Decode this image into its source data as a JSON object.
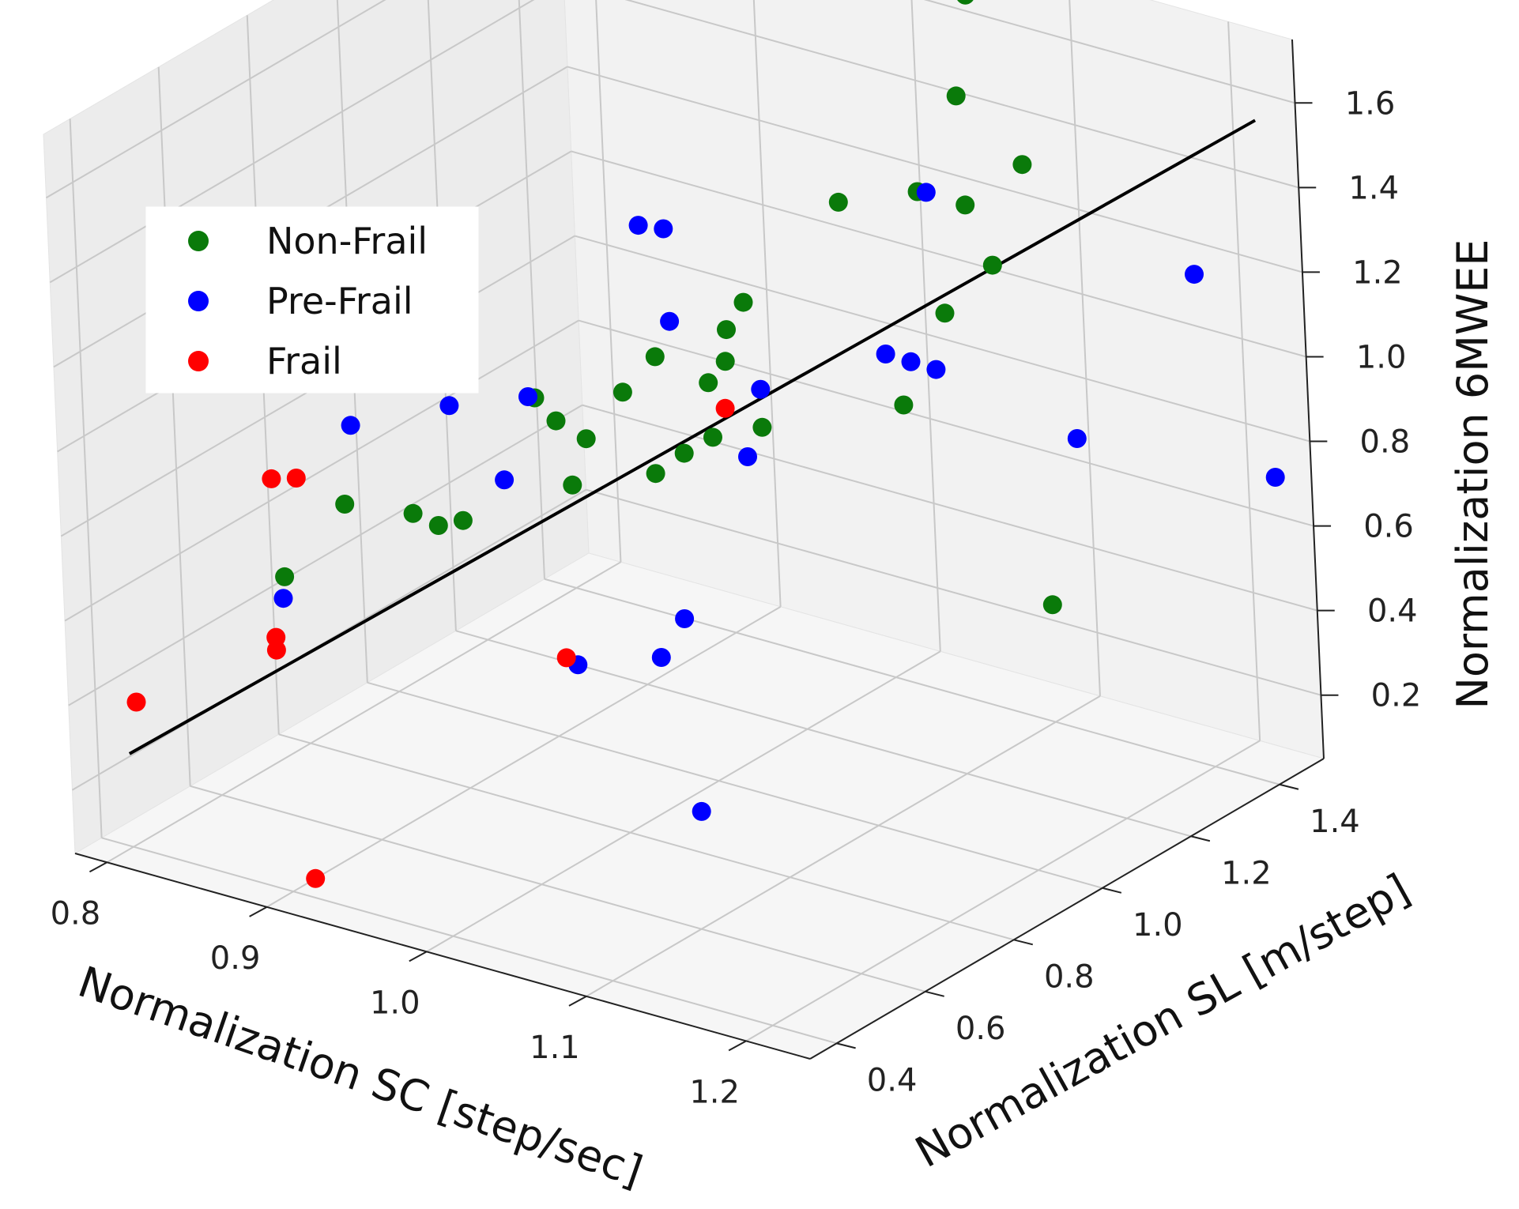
{
  "chart_data": {
    "type": "scatter",
    "projection": "3d",
    "title": "",
    "xlabel": "Normalization SC [step/sec]",
    "ylabel": "Normalization SL [m/step]",
    "zlabel": "Normalization 6MWEE",
    "x_ticks": [
      "0.8",
      "0.9",
      "1.0",
      "1.1",
      "1.2"
    ],
    "y_ticks": [
      "0.4",
      "0.6",
      "0.8",
      "1.0",
      "1.2",
      "1.4"
    ],
    "z_ticks": [
      "0.2",
      "0.4",
      "0.6",
      "0.8",
      "1.0",
      "1.2",
      "1.4",
      "1.6"
    ],
    "xlim": [
      0.78,
      1.24
    ],
    "ylim": [
      0.34,
      1.5
    ],
    "zlim": [
      0.05,
      1.75
    ],
    "legend": {
      "position": "top-left",
      "entries": [
        {
          "name": "Non-Frail",
          "color": "#0a7a0a"
        },
        {
          "name": "Pre-Frail",
          "color": "#0000ff"
        },
        {
          "name": "Frail",
          "color": "#ff0000"
        }
      ]
    },
    "regression_line": {
      "color": "#000000",
      "from": {
        "x": 0.8,
        "y": 0.4,
        "z": 0.27
      },
      "to": {
        "x": 1.22,
        "y": 1.48,
        "z": 1.55
      }
    },
    "series": [
      {
        "name": "Non-Frail",
        "color": "#0a7a0a",
        "points": [
          {
            "x": 1.06,
            "y": 1.41,
            "z": 1.72
          },
          {
            "x": 1.06,
            "y": 1.38,
            "z": 1.5
          },
          {
            "x": 1.1,
            "y": 1.38,
            "z": 1.38
          },
          {
            "x": 1.04,
            "y": 1.18,
            "z": 1.35
          },
          {
            "x": 1.05,
            "y": 1.32,
            "z": 1.3
          },
          {
            "x": 1.08,
            "y": 1.32,
            "z": 1.3
          },
          {
            "x": 1.11,
            "y": 1.27,
            "z": 1.22
          },
          {
            "x": 1.09,
            "y": 1.23,
            "z": 1.11
          },
          {
            "x": 1.0,
            "y": 1.1,
            "z": 1.12
          },
          {
            "x": 1.0,
            "y": 1.06,
            "z": 1.08
          },
          {
            "x": 1.01,
            "y": 1.02,
            "z": 1.04
          },
          {
            "x": 0.98,
            "y": 0.97,
            "z": 1.05
          },
          {
            "x": 0.97,
            "y": 0.93,
            "z": 0.98
          },
          {
            "x": 0.94,
            "y": 0.84,
            "z": 0.99
          },
          {
            "x": 0.95,
            "y": 0.85,
            "z": 0.94
          },
          {
            "x": 0.96,
            "y": 0.88,
            "z": 0.89
          },
          {
            "x": 0.99,
            "y": 1.05,
            "z": 0.95
          },
          {
            "x": 1.07,
            "y": 1.2,
            "z": 0.89
          },
          {
            "x": 1.02,
            "y": 1.06,
            "z": 0.87
          },
          {
            "x": 1.0,
            "y": 1.02,
            "z": 0.85
          },
          {
            "x": 0.99,
            "y": 0.99,
            "z": 0.82
          },
          {
            "x": 0.98,
            "y": 0.96,
            "z": 0.78
          },
          {
            "x": 0.95,
            "y": 0.88,
            "z": 0.77
          },
          {
            "x": 0.91,
            "y": 0.72,
            "z": 0.73
          },
          {
            "x": 0.92,
            "y": 0.74,
            "z": 0.74
          },
          {
            "x": 0.9,
            "y": 0.7,
            "z": 0.76
          },
          {
            "x": 0.88,
            "y": 0.62,
            "z": 0.81
          },
          {
            "x": 0.86,
            "y": 0.55,
            "z": 0.66
          },
          {
            "x": 1.13,
            "y": 1.3,
            "z": 0.42
          }
        ]
      },
      {
        "name": "Pre-Frail",
        "color": "#0000ff",
        "points": [
          {
            "x": 1.07,
            "y": 1.27,
            "z": 1.35
          },
          {
            "x": 0.95,
            "y": 1.05,
            "z": 1.28
          },
          {
            "x": 0.96,
            "y": 1.07,
            "z": 1.27
          },
          {
            "x": 0.97,
            "y": 1.04,
            "z": 1.08
          },
          {
            "x": 0.84,
            "y": 0.82,
            "z": 1.05
          },
          {
            "x": 1.18,
            "y": 1.47,
            "z": 1.15
          },
          {
            "x": 1.06,
            "y": 1.2,
            "z": 1.0
          },
          {
            "x": 1.07,
            "y": 1.22,
            "z": 0.98
          },
          {
            "x": 1.08,
            "y": 1.24,
            "z": 0.96
          },
          {
            "x": 1.02,
            "y": 1.06,
            "z": 0.96
          },
          {
            "x": 0.93,
            "y": 0.86,
            "z": 0.97
          },
          {
            "x": 0.9,
            "y": 0.79,
            "z": 0.96
          },
          {
            "x": 0.86,
            "y": 0.71,
            "z": 0.92
          },
          {
            "x": 1.13,
            "y": 1.37,
            "z": 0.77
          },
          {
            "x": 1.22,
            "y": 1.49,
            "z": 0.7
          },
          {
            "x": 1.01,
            "y": 1.06,
            "z": 0.79
          },
          {
            "x": 0.93,
            "y": 0.8,
            "z": 0.81
          },
          {
            "x": 1.0,
            "y": 0.94,
            "z": 0.47
          },
          {
            "x": 0.99,
            "y": 0.92,
            "z": 0.38
          },
          {
            "x": 0.96,
            "y": 0.84,
            "z": 0.38
          },
          {
            "x": 0.85,
            "y": 0.58,
            "z": 0.58
          },
          {
            "x": 1.04,
            "y": 0.82,
            "z": 0.13
          }
        ]
      },
      {
        "name": "Frail",
        "color": "#ff0000",
        "points": [
          {
            "x": 0.84,
            "y": 0.6,
            "z": 0.84
          },
          {
            "x": 0.85,
            "y": 0.62,
            "z": 0.84
          },
          {
            "x": 1.0,
            "y": 1.05,
            "z": 0.9
          },
          {
            "x": 0.95,
            "y": 0.85,
            "z": 0.38
          },
          {
            "x": 0.85,
            "y": 0.56,
            "z": 0.5
          },
          {
            "x": 0.85,
            "y": 0.56,
            "z": 0.47
          },
          {
            "x": 0.8,
            "y": 0.42,
            "z": 0.38
          },
          {
            "x": 0.9,
            "y": 0.45,
            "z": 0.05
          }
        ]
      }
    ]
  }
}
